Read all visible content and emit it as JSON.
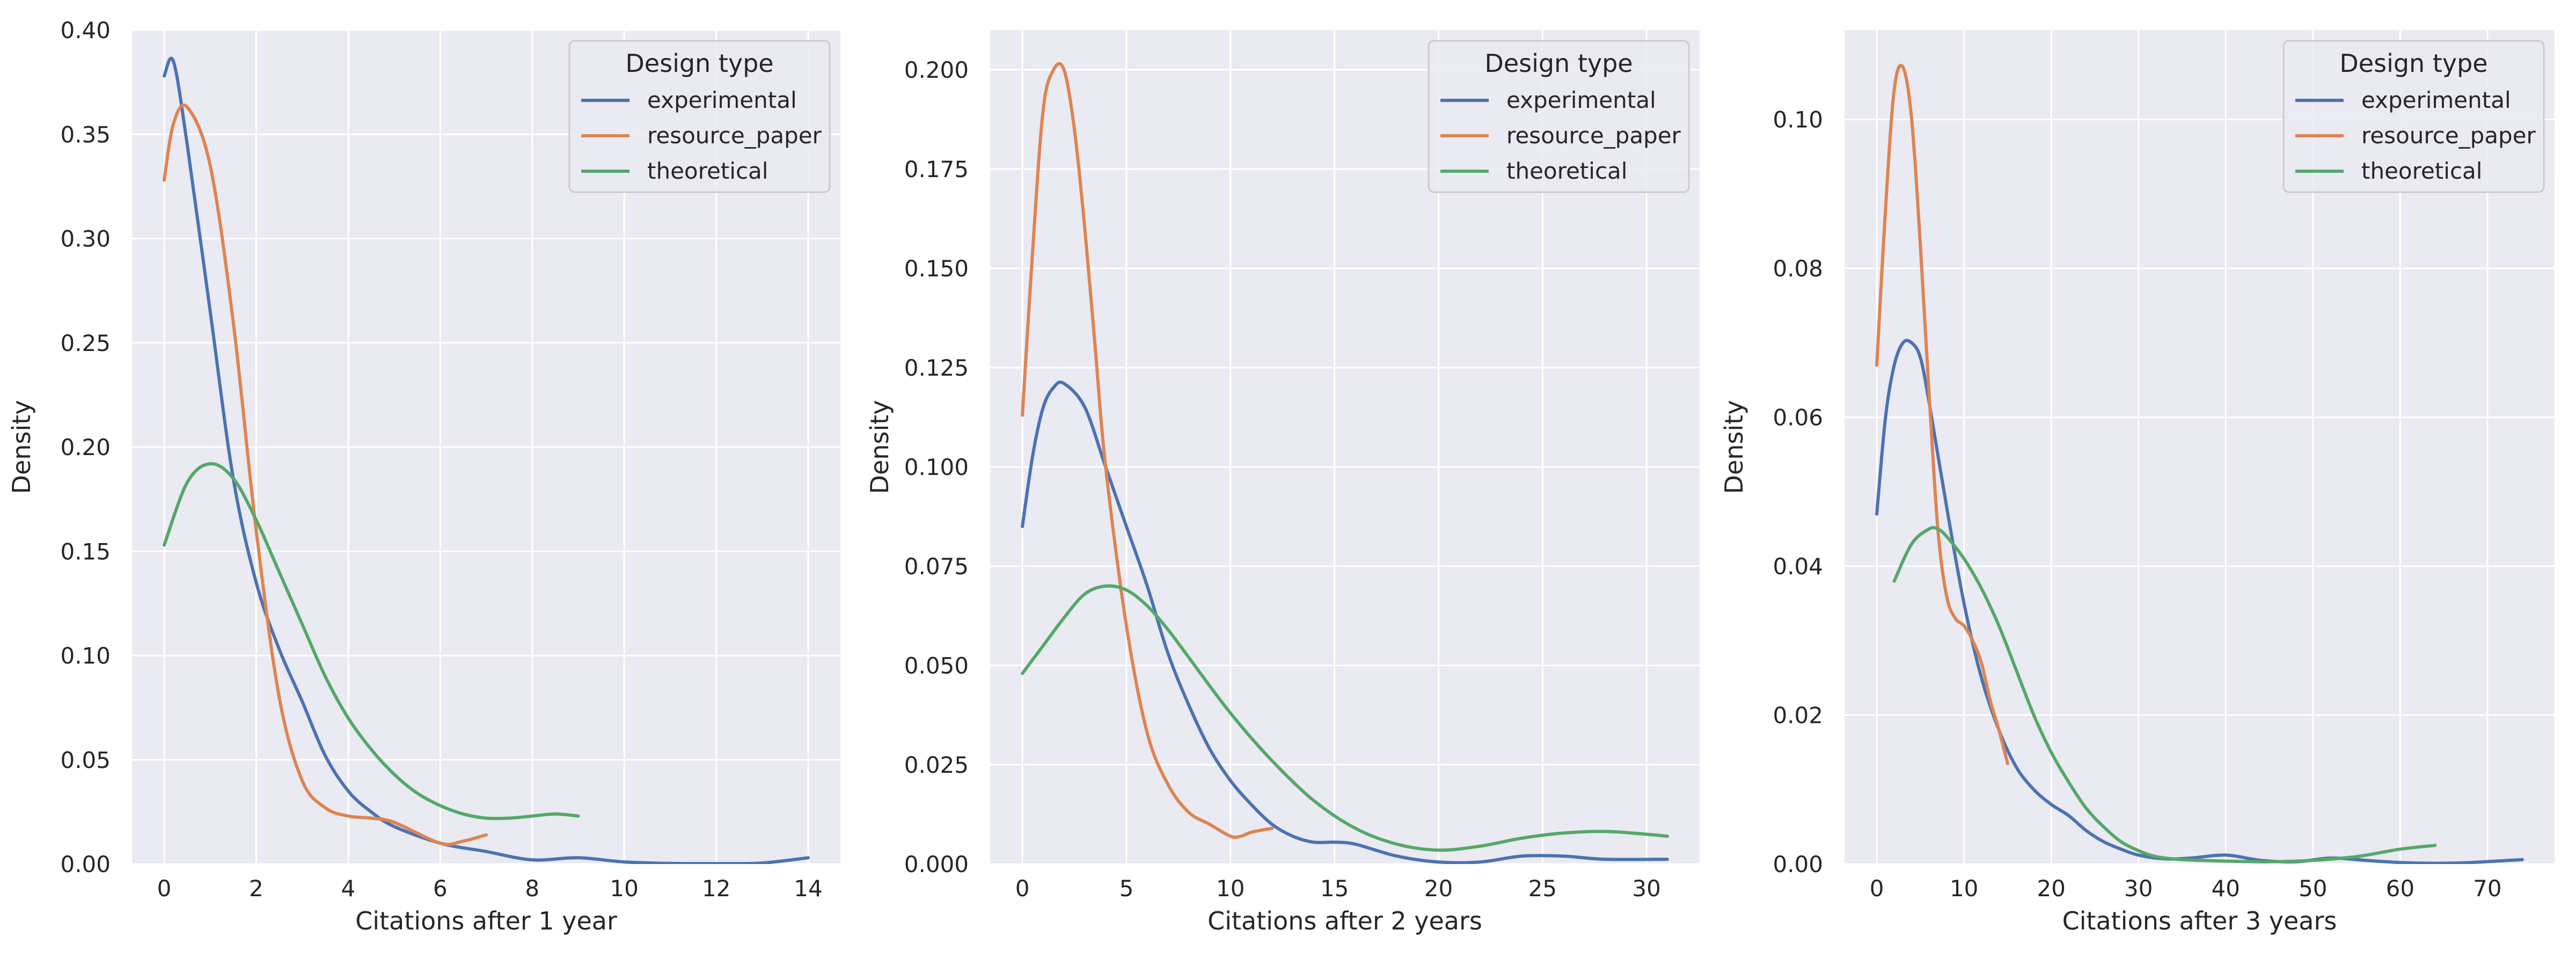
{
  "colors": {
    "background": "#eaeaf2",
    "grid": "#ffffff",
    "experimental": "#4c72b0",
    "resource_paper": "#dd8452",
    "theoretical": "#55a868"
  },
  "chart_data": [
    {
      "type": "line",
      "xlabel": "Citations after 1 year",
      "ylabel": "Density",
      "xlim": [
        -0.7,
        14.7
      ],
      "ylim": [
        0,
        0.4
      ],
      "xticks": [
        0,
        2,
        4,
        6,
        8,
        10,
        12,
        14
      ],
      "yticks": [
        0.0,
        0.05,
        0.1,
        0.15,
        0.2,
        0.25,
        0.3,
        0.35,
        0.4
      ],
      "ytick_labels": [
        "0.00",
        "0.05",
        "0.10",
        "0.15",
        "0.20",
        "0.25",
        "0.30",
        "0.35",
        "0.40"
      ],
      "grid": true,
      "legend": {
        "title": "Design type",
        "placement": "top-right"
      },
      "series": [
        {
          "name": "experimental",
          "color_key": "experimental",
          "x": [
            0,
            0.2,
            0.5,
            1,
            1.5,
            2,
            2.5,
            3,
            3.5,
            4,
            4.5,
            5,
            6,
            7,
            8,
            9,
            10,
            11,
            12,
            13,
            14
          ],
          "y": [
            0.378,
            0.385,
            0.345,
            0.265,
            0.185,
            0.135,
            0.103,
            0.078,
            0.052,
            0.035,
            0.025,
            0.018,
            0.01,
            0.006,
            0.002,
            0.003,
            0.001,
            0.0003,
            0.0002,
            0.0005,
            0.003
          ]
        },
        {
          "name": "resource_paper",
          "color_key": "resource_paper",
          "x": [
            0,
            0.2,
            0.5,
            1,
            1.5,
            2,
            2.5,
            3,
            3.5,
            4,
            4.5,
            5,
            6,
            6.5,
            7
          ],
          "y": [
            0.328,
            0.355,
            0.363,
            0.335,
            0.26,
            0.16,
            0.08,
            0.04,
            0.027,
            0.023,
            0.022,
            0.02,
            0.01,
            0.011,
            0.014
          ]
        },
        {
          "name": "theoretical",
          "color_key": "theoretical",
          "x": [
            0,
            0.5,
            1,
            1.5,
            2,
            2.5,
            3,
            3.5,
            4,
            4.5,
            5,
            5.5,
            6,
            6.5,
            7,
            7.5,
            8,
            8.5,
            9
          ],
          "y": [
            0.153,
            0.183,
            0.192,
            0.185,
            0.165,
            0.14,
            0.115,
            0.09,
            0.07,
            0.055,
            0.043,
            0.034,
            0.028,
            0.024,
            0.022,
            0.022,
            0.023,
            0.024,
            0.023
          ]
        }
      ]
    },
    {
      "type": "line",
      "xlabel": "Citations after 2 years",
      "ylabel": "Density",
      "xlim": [
        -1.55,
        32.55
      ],
      "ylim": [
        0,
        0.21
      ],
      "xticks": [
        0,
        5,
        10,
        15,
        20,
        25,
        30
      ],
      "yticks": [
        0.0,
        0.025,
        0.05,
        0.075,
        0.1,
        0.125,
        0.15,
        0.175,
        0.2
      ],
      "ytick_labels": [
        "0.000",
        "0.025",
        "0.050",
        "0.075",
        "0.100",
        "0.125",
        "0.150",
        "0.175",
        "0.200"
      ],
      "grid": true,
      "legend": {
        "title": "Design type",
        "placement": "top-right"
      },
      "series": [
        {
          "name": "experimental",
          "color_key": "experimental",
          "x": [
            0,
            0.5,
            1,
            1.5,
            2,
            3,
            4,
            5,
            6,
            7,
            8,
            9,
            10,
            11,
            12,
            13,
            14,
            15,
            16,
            18,
            20,
            22,
            24,
            26,
            28,
            31
          ],
          "y": [
            0.085,
            0.103,
            0.115,
            0.12,
            0.121,
            0.115,
            0.1,
            0.085,
            0.07,
            0.053,
            0.04,
            0.029,
            0.021,
            0.015,
            0.01,
            0.007,
            0.0055,
            0.0055,
            0.005,
            0.002,
            0.0005,
            0.0005,
            0.002,
            0.002,
            0.0012,
            0.0012
          ]
        },
        {
          "name": "resource_paper",
          "color_key": "resource_paper",
          "x": [
            0,
            0.5,
            1,
            1.5,
            2,
            2.5,
            3,
            3.5,
            4,
            5,
            6,
            7,
            8,
            9,
            10,
            10.5,
            11,
            12
          ],
          "y": [
            0.113,
            0.155,
            0.19,
            0.2,
            0.2,
            0.185,
            0.16,
            0.13,
            0.1,
            0.06,
            0.033,
            0.02,
            0.013,
            0.01,
            0.007,
            0.007,
            0.008,
            0.009
          ]
        },
        {
          "name": "theoretical",
          "color_key": "theoretical",
          "x": [
            0,
            1,
            2,
            3,
            4,
            5,
            6,
            7,
            8,
            10,
            12,
            14,
            16,
            18,
            20,
            22,
            24,
            26,
            28,
            30,
            31
          ],
          "y": [
            0.048,
            0.055,
            0.062,
            0.068,
            0.07,
            0.069,
            0.065,
            0.059,
            0.052,
            0.038,
            0.026,
            0.016,
            0.009,
            0.005,
            0.0035,
            0.0045,
            0.0065,
            0.0078,
            0.0082,
            0.0075,
            0.007
          ]
        }
      ]
    },
    {
      "type": "line",
      "xlabel": "Citations after 3 years",
      "ylabel": "Density",
      "xlim": [
        -3.7,
        77.7
      ],
      "ylim": [
        0,
        0.112
      ],
      "xticks": [
        0,
        10,
        20,
        30,
        40,
        50,
        60,
        70
      ],
      "yticks": [
        0.0,
        0.02,
        0.04,
        0.06,
        0.08,
        0.1
      ],
      "ytick_labels": [
        "0.00",
        "0.02",
        "0.04",
        "0.06",
        "0.08",
        "0.10"
      ],
      "grid": true,
      "legend": {
        "title": "Design type",
        "placement": "top-right"
      },
      "series": [
        {
          "name": "experimental",
          "color_key": "experimental",
          "x": [
            0,
            1,
            2,
            3,
            4,
            5,
            6,
            8,
            10,
            12,
            14,
            16,
            18,
            20,
            22,
            24,
            26,
            28,
            30,
            33,
            36,
            40,
            44,
            48,
            52,
            56,
            60,
            64,
            68,
            74
          ],
          "y": [
            0.047,
            0.06,
            0.067,
            0.07,
            0.07,
            0.068,
            0.062,
            0.048,
            0.035,
            0.025,
            0.018,
            0.013,
            0.01,
            0.008,
            0.0065,
            0.0045,
            0.003,
            0.002,
            0.0012,
            0.0007,
            0.0008,
            0.0012,
            0.0005,
            0.0003,
            0.0008,
            0.0005,
            0.0002,
            0.0001,
            0.0002,
            0.0006
          ]
        },
        {
          "name": "resource_paper",
          "color_key": "resource_paper",
          "x": [
            0,
            1,
            2,
            3,
            4,
            5,
            6,
            7,
            8,
            9,
            10,
            11,
            12,
            13,
            14,
            15
          ],
          "y": [
            0.067,
            0.088,
            0.104,
            0.107,
            0.1,
            0.083,
            0.063,
            0.045,
            0.036,
            0.033,
            0.032,
            0.03,
            0.027,
            0.022,
            0.018,
            0.0135
          ]
        },
        {
          "name": "theoretical",
          "color_key": "theoretical",
          "x": [
            2,
            4,
            6,
            7,
            8,
            10,
            12,
            14,
            16,
            18,
            20,
            22,
            24,
            26,
            28,
            30,
            32,
            35,
            40,
            45,
            50,
            55,
            60,
            64
          ],
          "y": [
            0.038,
            0.043,
            0.045,
            0.045,
            0.044,
            0.041,
            0.037,
            0.032,
            0.026,
            0.02,
            0.015,
            0.011,
            0.0075,
            0.005,
            0.003,
            0.0018,
            0.001,
            0.0006,
            0.0004,
            0.0003,
            0.0005,
            0.001,
            0.002,
            0.0025
          ]
        }
      ]
    }
  ]
}
